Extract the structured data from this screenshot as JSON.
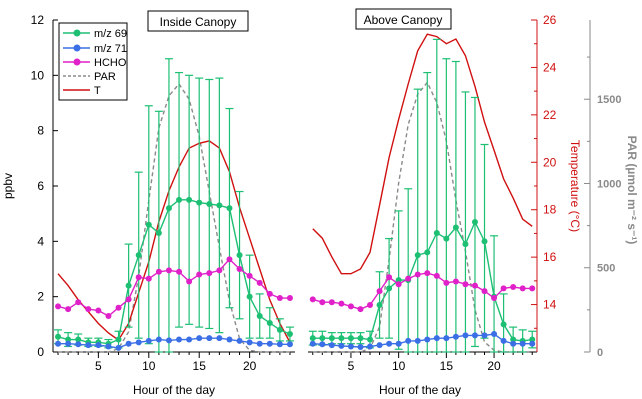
{
  "chart_data": [
    {
      "type": "line",
      "title": "Inside Canopy",
      "xlabel": "Hour of the day",
      "ylabel": "ppbv",
      "xlim": [
        0.5,
        24.5
      ],
      "ylim": [
        0,
        12
      ],
      "x_ticks": [
        5,
        10,
        15,
        20
      ],
      "y_ticks": [
        0,
        2,
        4,
        6,
        8,
        10,
        12
      ],
      "legend": {
        "placement": "top-left",
        "entries": [
          "m/z 69",
          "m/z 71",
          "HCHO",
          "PAR",
          "T"
        ]
      },
      "x": [
        1,
        2,
        3,
        4,
        5,
        6,
        7,
        8,
        9,
        10,
        11,
        12,
        13,
        14,
        15,
        16,
        17,
        18,
        19,
        20,
        21,
        22,
        23,
        24
      ],
      "series": [
        {
          "name": "m/z 69",
          "color": "#1dbf73",
          "axis": "left",
          "values": [
            0.55,
            0.45,
            0.45,
            0.35,
            0.35,
            0.3,
            0.45,
            2.4,
            3.5,
            4.6,
            4.3,
            5.2,
            5.5,
            5.5,
            5.4,
            5.35,
            5.3,
            5.2,
            3.5,
            2.0,
            1.3,
            1.05,
            0.8,
            0.65
          ],
          "error": [
            0.25,
            0.25,
            0.2,
            0.15,
            0.15,
            0.15,
            0.3,
            1.5,
            3.0,
            4.3,
            4.4,
            5.4,
            4.6,
            4.5,
            4.5,
            4.5,
            4.6,
            3.6,
            2.3,
            1.5,
            0.8,
            0.55,
            0.4,
            0.25
          ]
        },
        {
          "name": "m/z 71",
          "color": "#3b6fe6",
          "axis": "left",
          "values": [
            0.3,
            0.3,
            0.28,
            0.25,
            0.25,
            0.2,
            0.15,
            0.3,
            0.35,
            0.4,
            0.45,
            0.42,
            0.45,
            0.45,
            0.5,
            0.5,
            0.5,
            0.45,
            0.4,
            0.35,
            0.3,
            0.3,
            0.28,
            0.28
          ]
        },
        {
          "name": "HCHO",
          "color": "#e020c8",
          "axis": "left",
          "values": [
            1.65,
            1.55,
            1.8,
            1.55,
            1.5,
            1.3,
            1.6,
            1.9,
            2.7,
            2.65,
            2.9,
            2.95,
            2.9,
            2.55,
            2.8,
            2.85,
            2.95,
            3.35,
            3.0,
            2.75,
            2.5,
            2.1,
            1.95,
            1.95
          ]
        },
        {
          "name": "PAR",
          "color": "#8a8a8a",
          "axis": "PAR",
          "dashed": true,
          "values": [
            0,
            0,
            0,
            0,
            0,
            0,
            20,
            120,
            450,
            900,
            1330,
            1520,
            1590,
            1500,
            1280,
            950,
            620,
            300,
            80,
            10,
            0,
            0,
            0,
            0
          ]
        },
        {
          "name": "T",
          "color": "#d01010",
          "axis": "temperature",
          "values": [
            15.3,
            14.8,
            14.2,
            13.7,
            13.2,
            12.8,
            12.5,
            13.2,
            14.5,
            15.8,
            17.5,
            18.8,
            19.8,
            20.6,
            20.8,
            20.9,
            20.6,
            19.6,
            18.1,
            16.8,
            15.5,
            14.2,
            13.2,
            12.4
          ]
        }
      ]
    },
    {
      "type": "line",
      "title": "Above Canopy",
      "xlabel": "Hour of the day",
      "ylabel": "",
      "xlim": [
        0.5,
        24.5
      ],
      "ylim": [
        0,
        12
      ],
      "x_ticks": [
        5,
        10,
        15,
        20
      ],
      "x": [
        1,
        2,
        3,
        4,
        5,
        6,
        7,
        8,
        9,
        10,
        11,
        12,
        13,
        14,
        15,
        16,
        17,
        18,
        19,
        20,
        21,
        22,
        23,
        24
      ],
      "right_axes": [
        {
          "label": "Temperature (°C)",
          "color": "#d01010",
          "ticks": [
            14,
            16,
            18,
            20,
            22,
            24,
            26
          ],
          "range": [
            12,
            26
          ]
        },
        {
          "label": "PAR (µmol m⁻² s⁻¹)",
          "color": "#8a8a8a",
          "ticks": [
            0,
            500,
            1000,
            1500
          ],
          "range": [
            0,
            1970
          ]
        }
      ],
      "series": [
        {
          "name": "m/z 69",
          "color": "#1dbf73",
          "axis": "left",
          "values": [
            0.5,
            0.5,
            0.5,
            0.5,
            0.5,
            0.5,
            0.45,
            1.7,
            2.3,
            2.6,
            2.6,
            3.5,
            3.6,
            4.3,
            4.1,
            4.5,
            3.9,
            4.7,
            4.0,
            2.0,
            1.0,
            0.45,
            0.4,
            0.45
          ],
          "error": [
            0.25,
            0.25,
            0.2,
            0.2,
            0.2,
            0.2,
            0.3,
            1.2,
            1.8,
            2.5,
            3.3,
            6.0,
            6.5,
            7.0,
            6.5,
            6.0,
            5.5,
            4.5,
            3.5,
            2.2,
            1.1,
            0.45,
            0.4,
            0.3
          ]
        },
        {
          "name": "m/z 71",
          "color": "#3b6fe6",
          "axis": "left",
          "values": [
            0.3,
            0.28,
            0.25,
            0.22,
            0.2,
            0.18,
            0.2,
            0.25,
            0.3,
            0.3,
            0.4,
            0.4,
            0.45,
            0.5,
            0.5,
            0.55,
            0.6,
            0.6,
            0.6,
            0.65,
            0.4,
            0.3,
            0.3,
            0.3
          ]
        },
        {
          "name": "HCHO",
          "color": "#e020c8",
          "axis": "left",
          "values": [
            1.9,
            1.8,
            1.8,
            1.75,
            1.65,
            1.55,
            1.7,
            2.2,
            2.7,
            2.45,
            2.65,
            2.8,
            2.85,
            2.75,
            2.5,
            2.55,
            2.45,
            2.4,
            2.2,
            1.95,
            2.3,
            2.35,
            2.3,
            2.3
          ]
        },
        {
          "name": "PAR",
          "color": "#8a8a8a",
          "axis": "PAR",
          "dashed": true,
          "values": [
            0,
            0,
            0,
            0,
            0,
            0,
            20,
            150,
            550,
            1000,
            1350,
            1530,
            1600,
            1480,
            1250,
            900,
            600,
            250,
            60,
            10,
            0,
            0,
            0,
            0
          ]
        },
        {
          "name": "T",
          "color": "#d01010",
          "axis": "temperature",
          "values": [
            17.2,
            16.8,
            16.0,
            15.3,
            15.3,
            15.5,
            16.2,
            18.2,
            20.2,
            21.8,
            23.3,
            24.7,
            25.4,
            25.3,
            25.0,
            25.2,
            24.5,
            23.2,
            21.7,
            20.5,
            19.3,
            18.5,
            17.6,
            17.3
          ]
        }
      ]
    }
  ]
}
